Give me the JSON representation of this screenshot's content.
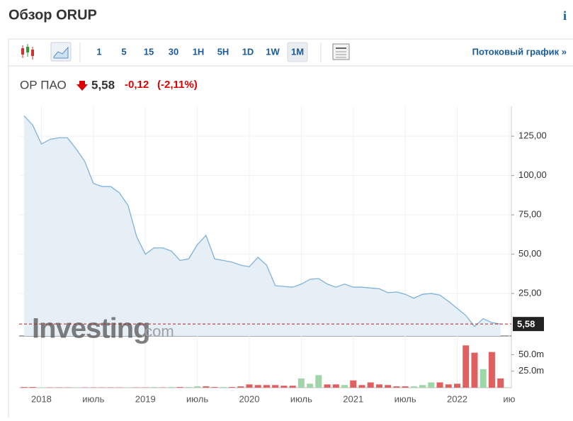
{
  "header": {
    "title": "Обзор ORUP",
    "info": "i"
  },
  "toolbar": {
    "intervals": [
      "1",
      "5",
      "15",
      "30",
      "1H",
      "5H",
      "1D",
      "1W",
      "1M"
    ],
    "active": 8,
    "stream_link": "Потоковый график »"
  },
  "quote": {
    "name": "ОР ПАО",
    "price": "5,58",
    "change": "-0,12",
    "change_pct": "(-2,11%)"
  },
  "watermark": {
    "brand": "Investing",
    "suffix": ".com"
  },
  "chart_data": {
    "type": "area",
    "categories": [
      null,
      null,
      "2018",
      null,
      null,
      null,
      null,
      null,
      "июль",
      null,
      null,
      null,
      null,
      null,
      "2019",
      null,
      null,
      null,
      null,
      null,
      "июль",
      null,
      null,
      null,
      null,
      null,
      "2020",
      null,
      null,
      null,
      null,
      null,
      "июль",
      null,
      null,
      null,
      null,
      null,
      "2021",
      null,
      null,
      null,
      null,
      null,
      "июль",
      null,
      null,
      null,
      null,
      null,
      "2022",
      null,
      null,
      null,
      null,
      null,
      "ию"
    ],
    "series": [
      {
        "color": "#7fb2dc",
        "fill": "#e6eef6",
        "values": [
          138,
          132,
          120,
          123,
          124,
          124,
          117,
          109,
          95,
          93,
          93,
          89,
          81,
          61,
          50,
          54,
          54,
          52,
          46,
          47,
          56,
          62,
          47,
          46,
          45,
          43,
          42,
          48,
          43,
          30,
          29.5,
          29,
          31,
          34,
          34.5,
          31,
          29,
          31,
          29,
          29,
          28.5,
          28,
          25.5,
          26,
          24.5,
          22,
          24.5,
          25,
          24,
          20,
          15.5,
          11,
          4,
          9,
          6.5,
          5.58,
          null
        ]
      }
    ],
    "ylim": [
      -2,
      144
    ],
    "yticks": [
      {
        "value": 25,
        "label": "25,00"
      },
      {
        "value": 50,
        "label": "50,00"
      },
      {
        "value": 75,
        "label": "75,00"
      },
      {
        "value": 100,
        "label": "100,00"
      },
      {
        "value": 125,
        "label": "125,00"
      }
    ],
    "grid": true,
    "last_color": "#b22222",
    "volume": {
      "values": [
        1,
        1,
        0.5,
        0.5,
        0.5,
        0.5,
        0.5,
        0.5,
        0.5,
        0.5,
        0.5,
        0.5,
        0.5,
        0.5,
        0.5,
        1,
        0.5,
        1,
        1,
        1,
        2,
        2,
        1,
        1,
        1,
        2,
        5,
        4,
        4,
        4,
        3,
        3,
        14,
        6,
        19,
        5,
        5,
        4,
        11,
        4,
        8,
        5,
        4,
        2,
        2,
        2,
        4,
        8,
        8,
        5,
        6,
        64,
        53,
        28,
        54,
        14,
        null
      ],
      "colors": [
        "#e0605f",
        "#e0605f",
        "#9fd6a9",
        "#e0605f",
        "#e0605f",
        "#e0605f",
        "#9fd6a9",
        "#e0605f",
        "#e0605f",
        "#e0605f",
        "#e0605f",
        "#e0605f",
        "#9fd6a9",
        "#e0605f",
        "#e0605f",
        "#9fd6a9",
        "#e0605f",
        "#9fd6a9",
        "#e0605f",
        "#9fd6a9",
        "#9fd6a9",
        "#e0605f",
        "#e0605f",
        "#9fd6a9",
        "#e0605f",
        "#e0605f",
        "#e0605f",
        "#e0605f",
        "#e0605f",
        "#e0605f",
        "#e0605f",
        "#e0605f",
        "#9fd6a9",
        "#9fd6a9",
        "#9fd6a9",
        "#e0605f",
        "#e0605f",
        "#9fd6a9",
        "#e0605f",
        "#e0605f",
        "#e0605f",
        "#e0605f",
        "#e0605f",
        "#e0605f",
        "#e0605f",
        "#9fd6a9",
        "#9fd6a9",
        "#9fd6a9",
        "#e0605f",
        "#e0605f",
        "#e0605f",
        "#e0605f",
        "#e0605f",
        "#9fd6a9",
        "#e0605f",
        "#e0605f",
        null
      ],
      "ylim": [
        0,
        74
      ],
      "yticks": [
        {
          "value": 25,
          "label": "25.0m"
        },
        {
          "value": 50,
          "label": "50.0m"
        }
      ]
    }
  }
}
